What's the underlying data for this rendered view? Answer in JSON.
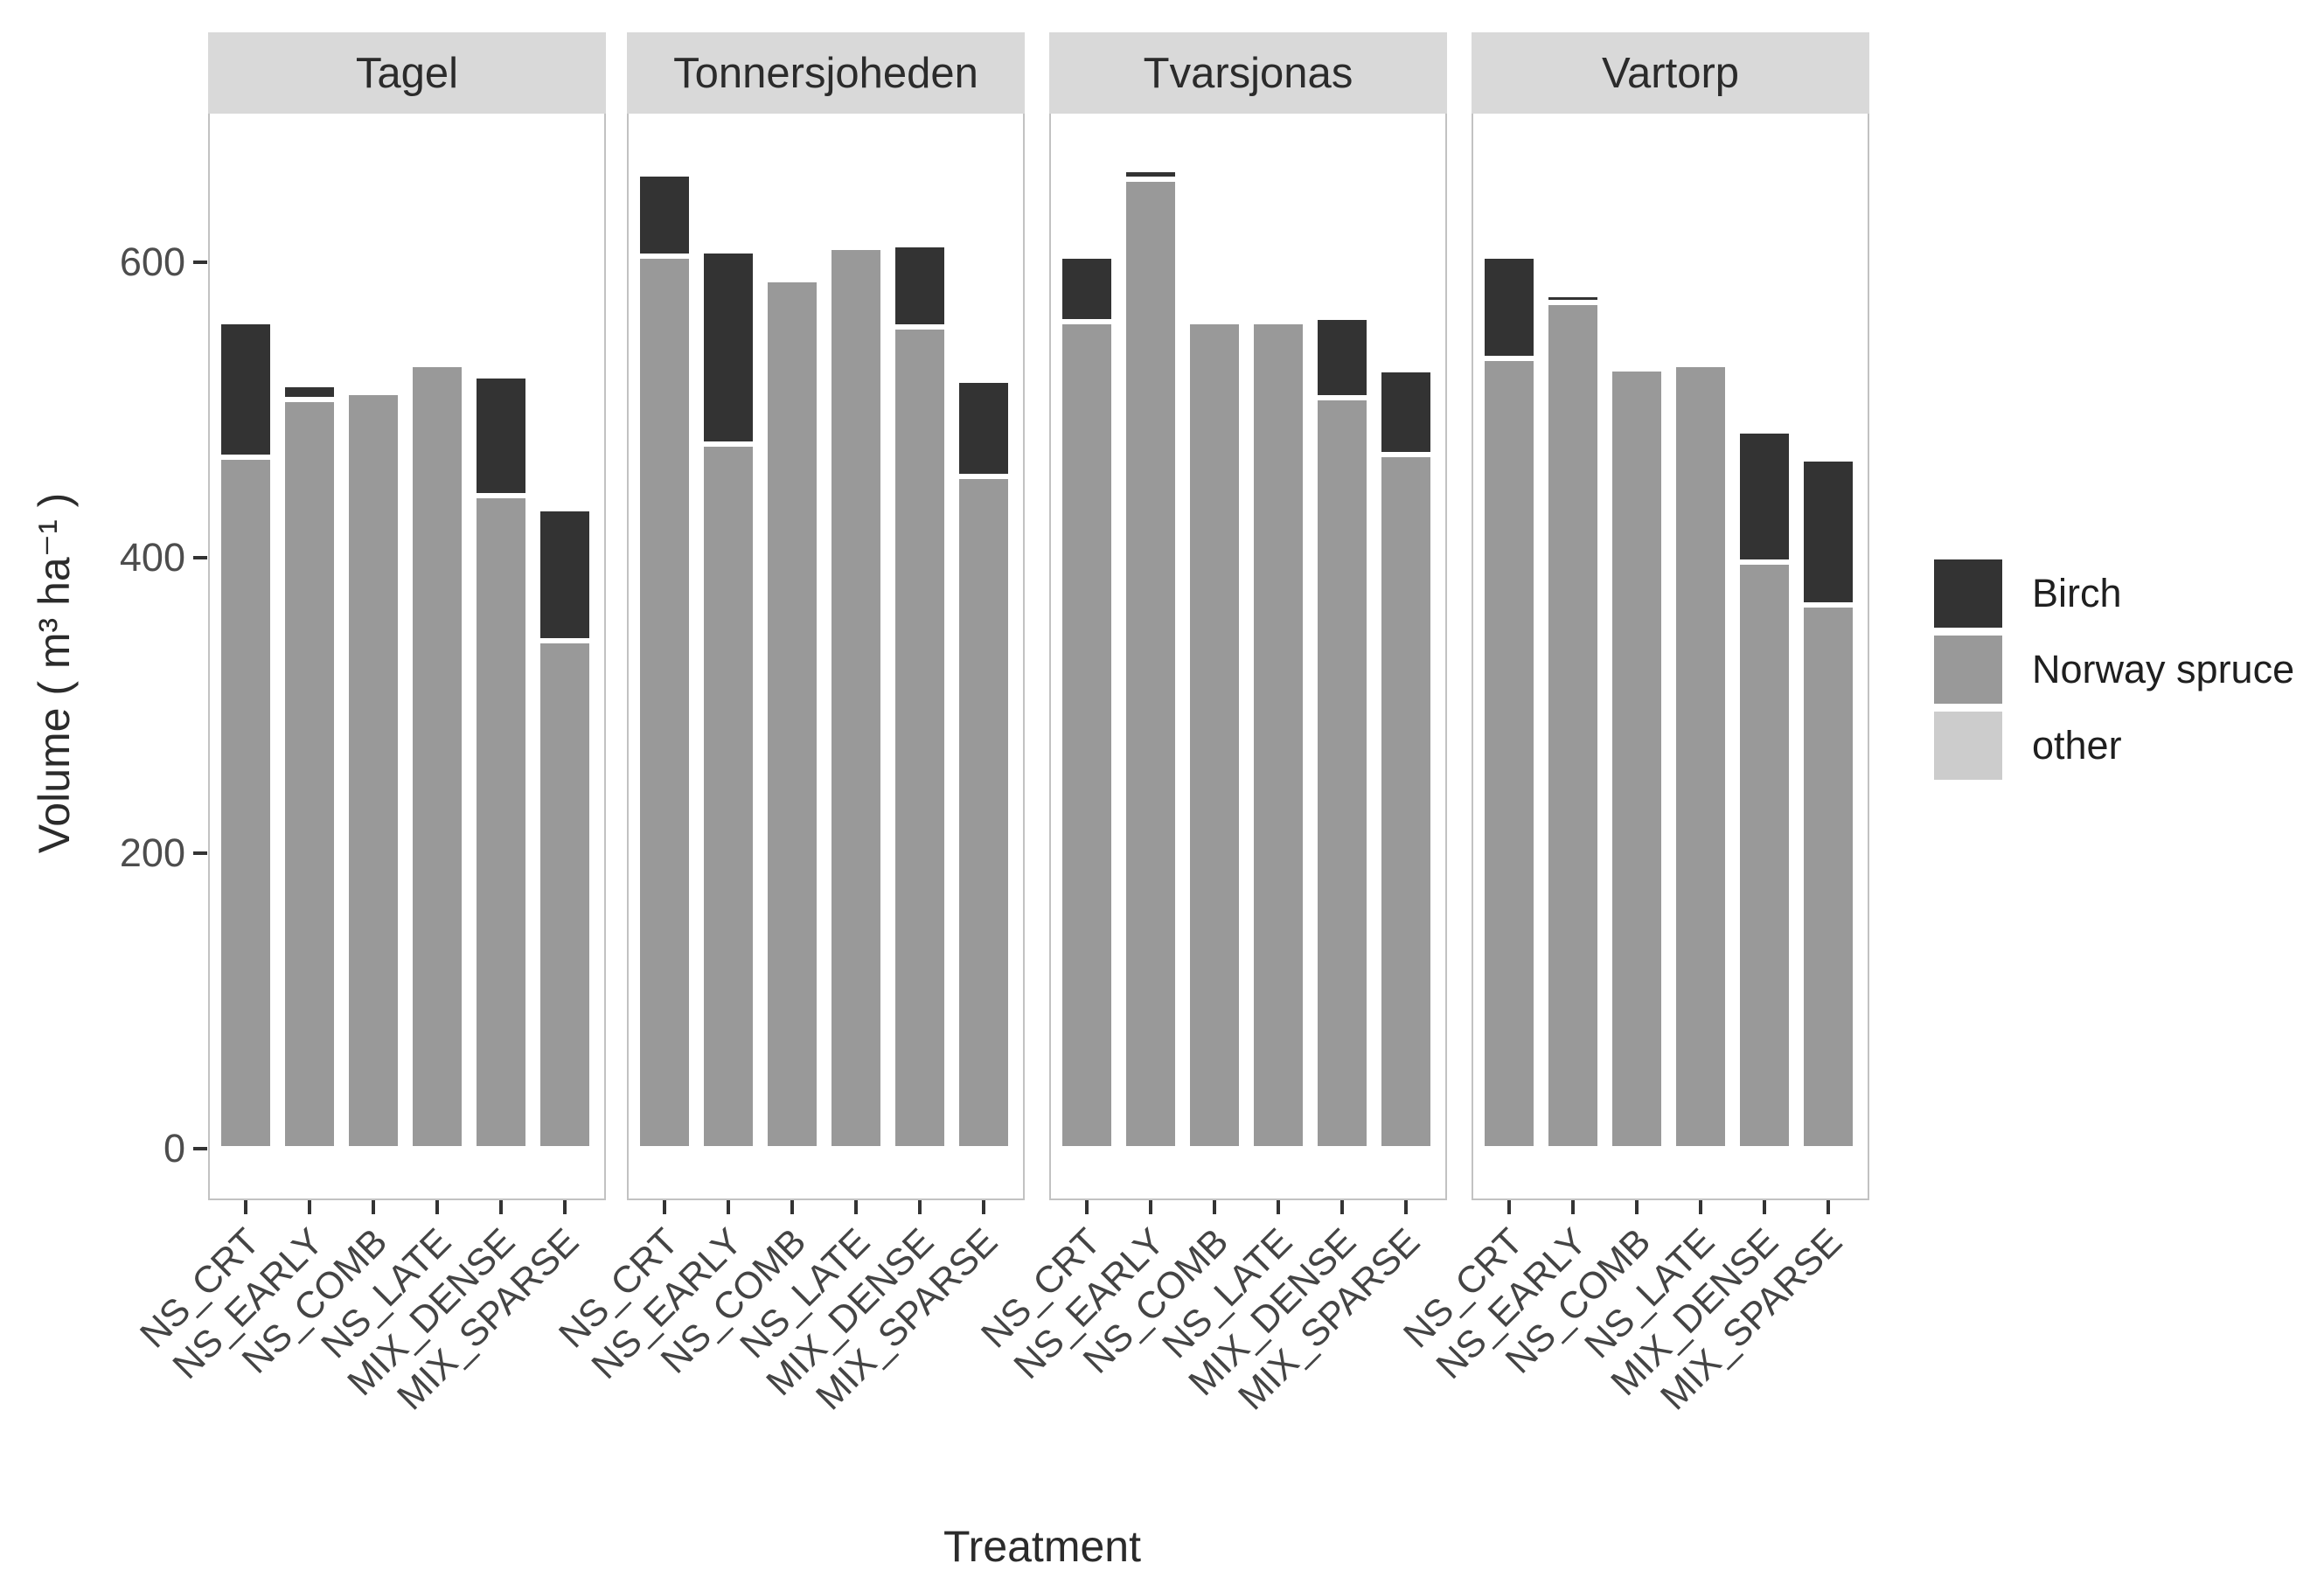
{
  "y_axis": {
    "title": "Volume ( m³ ha⁻¹ )",
    "tick_labels": [
      "0",
      "200",
      "400",
      "600"
    ],
    "tick_values": [
      0,
      200,
      400,
      600
    ]
  },
  "x_axis": {
    "title": "Treatment"
  },
  "legend": {
    "items": [
      {
        "label": "Birch",
        "color": "#333333"
      },
      {
        "label": "Norway spruce",
        "color": "#999999"
      },
      {
        "label": "other",
        "color": "#cccccc"
      }
    ]
  },
  "colors": {
    "birch": "#333333",
    "norway_spruce": "#999999",
    "other": "#cccccc",
    "strip_background": "#d9d9d9",
    "panel_border": "#c2c2c2",
    "tick_mark": "#333333"
  },
  "chart_data": {
    "type": "bar",
    "stacked": true,
    "title": "",
    "xlabel": "Treatment",
    "ylabel": "Volume ( m³ ha⁻¹ )",
    "ylim": [
      0,
      700
    ],
    "yticks": [
      0,
      200,
      400,
      600
    ],
    "grid": false,
    "legend_position": "right",
    "stack_order_top_to_bottom": [
      "Birch",
      "Norway spruce",
      "other"
    ],
    "categories": [
      "NS_CRT",
      "NS_EARLY",
      "NS_COMB",
      "NS_LATE",
      "MIX_DENSE",
      "MIX_SPARSE"
    ],
    "facets": [
      {
        "name": "Tagel",
        "series": [
          {
            "name": "Birch",
            "values": [
              92,
              10,
              0,
              0,
              81,
              89
            ]
          },
          {
            "name": "Norway spruce",
            "values": [
              468,
              507,
              512,
              531,
              442,
              344
            ]
          },
          {
            "name": "other",
            "values": [
              0,
              0,
              0,
              0,
              0,
              0
            ]
          }
        ]
      },
      {
        "name": "Tonnersjoheden",
        "series": [
          {
            "name": "Birch",
            "values": [
              56,
              131,
              0,
              0,
              56,
              65
            ]
          },
          {
            "name": "Norway spruce",
            "values": [
              604,
              477,
              588,
              610,
              556,
              455
            ]
          },
          {
            "name": "other",
            "values": [
              0,
              0,
              0,
              0,
              0,
              0
            ]
          }
        ]
      },
      {
        "name": "Tvarsjonas",
        "series": [
          {
            "name": "Birch",
            "values": [
              44,
              7,
              0,
              0,
              55,
              57
            ]
          },
          {
            "name": "Norway spruce",
            "values": [
              560,
              656,
              560,
              560,
              508,
              470
            ]
          },
          {
            "name": "other",
            "values": [
              0,
              0,
              0,
              0,
              0,
              0
            ]
          }
        ]
      },
      {
        "name": "Vartorp",
        "series": [
          {
            "name": "Birch",
            "values": [
              69,
              5,
              0,
              0,
              89,
              99
            ]
          },
          {
            "name": "Norway spruce",
            "values": [
              535,
              573,
              528,
              531,
              397,
              368
            ]
          },
          {
            "name": "other",
            "values": [
              0,
              0,
              0,
              0,
              0,
              0
            ]
          }
        ]
      }
    ]
  }
}
